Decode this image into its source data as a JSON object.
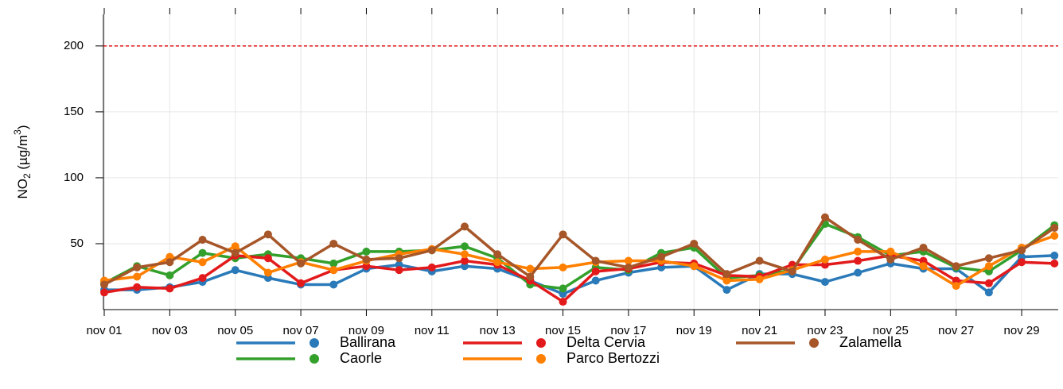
{
  "chart_data": {
    "type": "line",
    "y_label": [
      "NO",
      "2",
      " (µg/m",
      "3",
      ")"
    ],
    "categories": [
      "nov 01",
      null,
      "nov 03",
      null,
      "nov 05",
      null,
      "nov 07",
      null,
      "nov 09",
      null,
      "nov 11",
      null,
      "nov 13",
      null,
      "nov 15",
      null,
      "nov 17",
      null,
      "nov 19",
      null,
      "nov 21",
      null,
      "nov 23",
      null,
      "nov 25",
      null,
      "nov 27",
      null,
      "nov 29",
      null
    ],
    "series": [
      {
        "name": "Ballirana",
        "color": "#2a7ab9",
        "values": [
          15,
          15,
          17,
          21,
          30,
          24,
          19,
          19,
          31,
          34,
          29,
          33,
          31,
          22,
          12,
          22,
          28,
          32,
          33,
          15,
          27,
          27,
          21,
          28,
          35,
          31,
          31,
          13,
          40,
          41
        ]
      },
      {
        "name": "Caorle",
        "color": "#33a02c",
        "values": [
          20,
          33,
          26,
          43,
          39,
          42,
          39,
          35,
          44,
          44,
          45,
          48,
          39,
          19,
          16,
          32,
          30,
          43,
          47,
          24,
          26,
          30,
          65,
          55,
          41,
          44,
          32,
          29,
          45,
          64
        ]
      },
      {
        "name": "Delta Cervia",
        "color": "#e31a1c",
        "values": [
          13,
          17,
          16,
          24,
          41,
          39,
          20,
          30,
          33,
          30,
          32,
          37,
          34,
          22,
          6,
          29,
          31,
          36,
          35,
          26,
          25,
          34,
          34,
          37,
          41,
          37,
          22,
          20,
          36,
          35
        ]
      },
      {
        "name": "Parco Bertozzi",
        "color": "#ff7f00",
        "values": [
          22,
          25,
          40,
          36,
          48,
          28,
          36,
          30,
          37,
          42,
          46,
          42,
          36,
          31,
          32,
          36,
          37,
          37,
          33,
          22,
          23,
          30,
          38,
          44,
          44,
          33,
          18,
          33,
          47,
          56
        ]
      },
      {
        "name": "Zalamella",
        "color": "#a65628",
        "values": [
          19,
          32,
          36,
          53,
          43,
          57,
          35,
          50,
          38,
          39,
          45,
          63,
          42,
          25,
          57,
          37,
          32,
          40,
          50,
          27,
          37,
          29,
          70,
          53,
          38,
          47,
          33,
          39,
          45,
          62
        ]
      }
    ],
    "ylim": [
      0,
      224
    ],
    "yticks": [
      50,
      100,
      150,
      200
    ],
    "grid": true,
    "reference_line": {
      "value": 200,
      "color": "#e31a1c"
    },
    "legend": "bottom"
  }
}
